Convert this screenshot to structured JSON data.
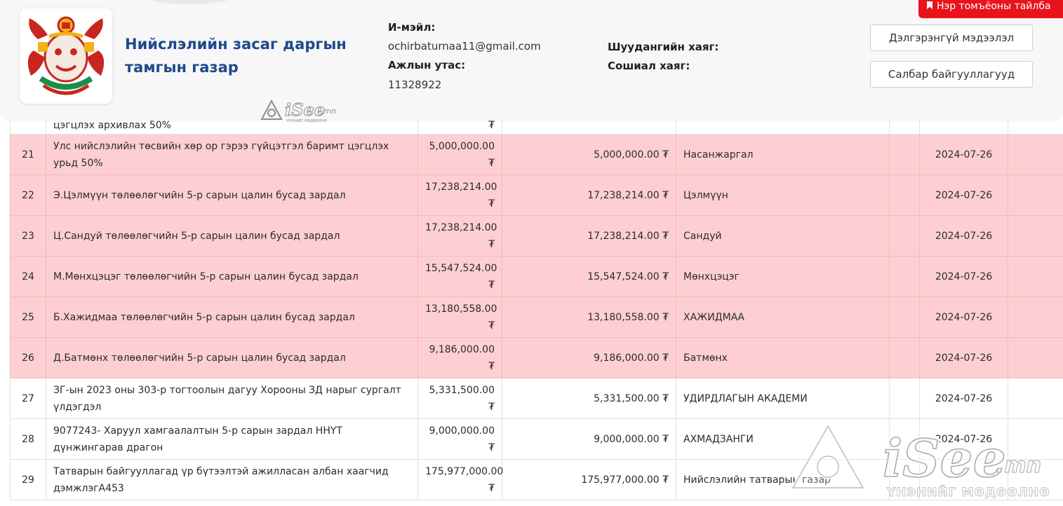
{
  "header": {
    "org_name": "Нийслэлийн засаг даргын тамгын газар",
    "email_label": "И-мэйл:",
    "email_value": "ochirbaturnaa11@gmail.com",
    "phone_label": "Ажлын утас:",
    "phone_value": "11328922",
    "mail_address_label": "Шуудангийн хаяг:",
    "social_label": "Сошиал хаяг:",
    "details_button": "Дэлгэрэнгүй мэдээлэл",
    "branches_button": "Салбар байгууллагууд",
    "red_button": "Нэр томъёоны тайлба"
  },
  "watermark": {
    "brand_main": "iSee",
    "brand_suffix": ".mn",
    "tagline": "ҮНЭНИЙГ МӨДӨӨЛНӨ",
    "tagline_small": "ҮНЭНИЙГ МӨДӨӨЛНӨ"
  },
  "table": {
    "partial_row": {
      "description": "цэгцлэх архивлах 50%",
      "amount_tail": "₮"
    },
    "rows": [
      {
        "no": "21",
        "description": "Улс нийслэлийн төсвийн хөр ор гэрээ гүйцэтгэл баримт цэгцлэх урьд 50%",
        "amount": "5,000,000.00 ₮",
        "paid": "5,000,000.00 ₮",
        "recipient": "Насанжаргал",
        "date": "2024-07-26",
        "highlight": true
      },
      {
        "no": "22",
        "description": "Э.Цэлмүүн төлөөлөгчийн 5-р сарын цалин бусад зардал",
        "amount": "17,238,214.00 ₮",
        "paid": "17,238,214.00 ₮",
        "recipient": "Цэлмүүн",
        "date": "2024-07-26",
        "highlight": true
      },
      {
        "no": "23",
        "description": "Ц.Сандуй төлөөлөгчийн 5-р сарын цалин бусад зардал",
        "amount": "17,238,214.00 ₮",
        "paid": "17,238,214.00 ₮",
        "recipient": "Сандуй",
        "date": "2024-07-26",
        "highlight": true
      },
      {
        "no": "24",
        "description": "М.Мөнхцэцэг төлөөлөгчийн 5-р сарын цалин бусад зардал",
        "amount": "15,547,524.00 ₮",
        "paid": "15,547,524.00 ₮",
        "recipient": "Мөнхцэцэг",
        "date": "2024-07-26",
        "highlight": true
      },
      {
        "no": "25",
        "description": "Б.Хажидмаа төлөөлөгчийн 5-р сарын цалин бусад зардал",
        "amount": "13,180,558.00 ₮",
        "paid": "13,180,558.00 ₮",
        "recipient": "ХАЖИДМАА",
        "date": "2024-07-26",
        "highlight": true
      },
      {
        "no": "26",
        "description": "Д.Батмөнх төлөөлөгчийн 5-р сарын цалин бусад зардал",
        "amount": "9,186,000.00 ₮",
        "paid": "9,186,000.00 ₮",
        "recipient": "Батмөнх",
        "date": "2024-07-26",
        "highlight": true
      },
      {
        "no": "27",
        "description": "ЗГ-ын 2023 оны 303-р тогтоолын дагуу Хорооны ЗД нарыг сургалт үлдэгдэл",
        "amount": "5,331,500.00 ₮",
        "paid": "5,331,500.00 ₮",
        "recipient": "УДИРДЛАГЫН АКАДЕМИ",
        "date": "2024-07-26",
        "highlight": false
      },
      {
        "no": "28",
        "description": "9077243- Харуул хамгаалалтын 5-р сарын зардал ННҮТ дүнжингарав драгон",
        "amount": "9,000,000.00 ₮",
        "paid": "9,000,000.00 ₮",
        "recipient": "АХМАДЗАНГИ",
        "date": "2024-07-26",
        "highlight": false
      },
      {
        "no": "29",
        "description": "Татварын байгууллагад үр бүтээлтэй ажилласан албан хаагчид дэмжлэгА453",
        "amount": "175,977,000.00 ₮",
        "paid": "175,977,000.00 ₮",
        "recipient": "Нийслэлийн татварын газар",
        "date": "",
        "highlight": false
      }
    ]
  },
  "colors": {
    "highlight_row": "#fecfd2",
    "org_title": "#1f4a8a",
    "red_button": "#e8141b"
  }
}
